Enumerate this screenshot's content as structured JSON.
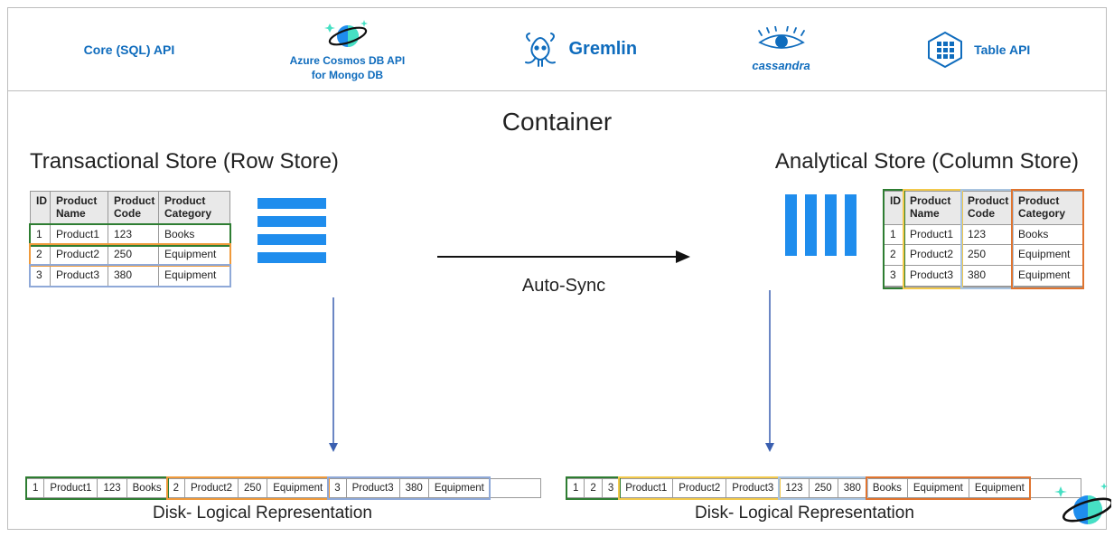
{
  "apis": {
    "core": "Core (SQL) API",
    "mongo_line1": "Azure Cosmos DB API",
    "mongo_line2": "for Mongo DB",
    "gremlin": "Gremlin",
    "cassandra": "cassandra",
    "table": "Table API"
  },
  "container_title": "Container",
  "left": {
    "title": "Transactional Store (Row Store)",
    "disk_label": "Disk- Logical Representation"
  },
  "right": {
    "title": "Analytical Store (Column Store)",
    "disk_label": "Disk- Logical Representation"
  },
  "autosync": "Auto-Sync",
  "table": {
    "headers": {
      "id": "ID",
      "name": "Product Name",
      "code": "Product Code",
      "cat": "Product Category"
    },
    "rows": [
      {
        "id": "1",
        "name": "Product1",
        "code": "123",
        "cat": "Books"
      },
      {
        "id": "2",
        "name": "Product2",
        "code": "250",
        "cat": "Equipment"
      },
      {
        "id": "3",
        "name": "Product3",
        "code": "380",
        "cat": "Equipment"
      }
    ]
  },
  "colors": {
    "blue": "#1f8ded",
    "brand": "#0f6cbd",
    "row1": "#2e7d32",
    "row2": "#ef9a3c",
    "row3": "#8fa9d8",
    "col1": "#2e7d32",
    "col2": "#f2c94c",
    "col3": "#a9c4e0",
    "col4": "#e0742f"
  },
  "style": {
    "bar_color": "#1f8ded",
    "row_bar_w": 76,
    "row_bar_h": 12,
    "row_bar_gap": 8,
    "row_bar_count": 4,
    "col_bar_w": 13,
    "col_bar_h": 68,
    "col_bar_gap": 9,
    "col_bar_count": 4
  }
}
